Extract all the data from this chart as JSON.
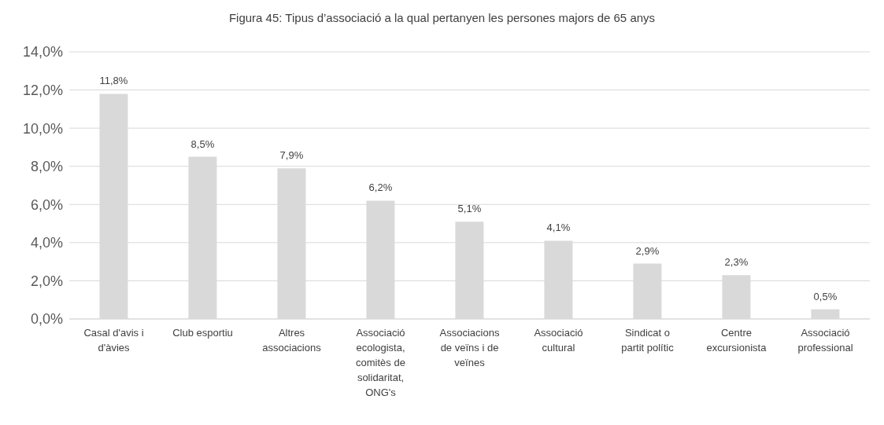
{
  "chart_data": {
    "type": "bar",
    "title": "Figura 45: Tipus d’associació a la qual pertanyen les persones majors de 65 anys",
    "categories": [
      "Casal d'avis i d'àvies",
      "Club esportiu",
      "Altres associacions",
      "Associació ecologista, comitès de solidaritat, ONG's",
      "Associacions de veïns i de veïnes",
      "Associació cultural",
      "Sindicat o partit polític",
      "Centre excursionista",
      "Associació professional"
    ],
    "values": [
      11.8,
      8.5,
      7.9,
      6.2,
      5.1,
      4.1,
      2.9,
      2.3,
      0.5
    ],
    "value_labels": [
      "11,8%",
      "8,5%",
      "7,9%",
      "6,2%",
      "5,1%",
      "4,1%",
      "2,9%",
      "2,3%",
      "0,5%"
    ],
    "color": "#d9d9d9",
    "ylim": [
      0,
      14
    ],
    "yticks": [
      {
        "value": 0,
        "label": "0,0%"
      },
      {
        "value": 2,
        "label": "2,0%"
      },
      {
        "value": 4,
        "label": "4,0%"
      },
      {
        "value": 6,
        "label": "6,0%"
      },
      {
        "value": 8,
        "label": "8,0%"
      },
      {
        "value": 10,
        "label": "10,0%"
      },
      {
        "value": 12,
        "label": "12,0%"
      },
      {
        "value": 14,
        "label": "14,0%"
      }
    ],
    "grid": "y"
  }
}
